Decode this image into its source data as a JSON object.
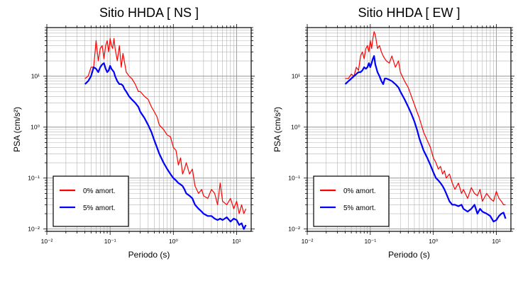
{
  "chart_data": [
    {
      "type": "line",
      "title": "Sitio HHDA [ NS ]",
      "xlabel": "Periodo (s)",
      "ylabel": "PSA (cm/s²)",
      "xscale": "log",
      "yscale": "log",
      "xlim": [
        0.01,
        17
      ],
      "ylim": [
        0.009,
        90
      ],
      "grid": true,
      "legend_position": "bottom-left",
      "x_tick_labels": [
        "10⁻²",
        "10⁻¹",
        "10⁰",
        "10¹"
      ],
      "y_tick_labels": [
        "10⁻²",
        "10⁻¹",
        "10⁰",
        "10¹"
      ],
      "series": [
        {
          "name": "0% amort.",
          "color": "#ff0000",
          "x": [
            0.04,
            0.045,
            0.05,
            0.055,
            0.06,
            0.065,
            0.07,
            0.075,
            0.08,
            0.085,
            0.09,
            0.095,
            0.1,
            0.105,
            0.11,
            0.115,
            0.12,
            0.13,
            0.14,
            0.15,
            0.16,
            0.17,
            0.18,
            0.2,
            0.22,
            0.25,
            0.28,
            0.3,
            0.35,
            0.4,
            0.45,
            0.5,
            0.55,
            0.6,
            0.7,
            0.8,
            0.9,
            1.0,
            1.1,
            1.2,
            1.3,
            1.4,
            1.5,
            1.6,
            1.8,
            2.0,
            2.2,
            2.5,
            2.8,
            3.0,
            3.5,
            4.0,
            4.5,
            5.0,
            5.5,
            6.0,
            7.0,
            8.0,
            9.0,
            10.0,
            11.0,
            12.0,
            13.0,
            14.0
          ],
          "y": [
            9,
            10,
            15,
            15,
            50,
            20,
            35,
            40,
            22,
            40,
            50,
            30,
            55,
            40,
            35,
            55,
            35,
            20,
            40,
            15,
            28,
            18,
            12,
            10,
            9,
            7,
            5,
            5,
            4,
            3.5,
            2.5,
            2.0,
            1.6,
            1.1,
            0.9,
            0.7,
            0.65,
            0.4,
            0.35,
            0.18,
            0.25,
            0.12,
            0.15,
            0.2,
            0.12,
            0.15,
            0.07,
            0.05,
            0.06,
            0.045,
            0.04,
            0.06,
            0.05,
            0.03,
            0.08,
            0.035,
            0.03,
            0.04,
            0.025,
            0.035,
            0.02,
            0.03,
            0.02,
            0.025
          ]
        },
        {
          "name": "5% amort.",
          "color": "#0000ff",
          "x": [
            0.04,
            0.045,
            0.05,
            0.055,
            0.06,
            0.065,
            0.07,
            0.075,
            0.08,
            0.085,
            0.09,
            0.095,
            0.1,
            0.105,
            0.11,
            0.115,
            0.12,
            0.13,
            0.14,
            0.15,
            0.16,
            0.17,
            0.18,
            0.2,
            0.22,
            0.25,
            0.28,
            0.3,
            0.35,
            0.4,
            0.45,
            0.5,
            0.55,
            0.6,
            0.7,
            0.8,
            0.9,
            1.0,
            1.1,
            1.2,
            1.3,
            1.4,
            1.5,
            1.6,
            1.8,
            2.0,
            2.2,
            2.5,
            2.8,
            3.0,
            3.5,
            4.0,
            4.5,
            5.0,
            5.5,
            6.0,
            7.0,
            8.0,
            9.0,
            10.0,
            11.0,
            12.0,
            13.0,
            14.0
          ],
          "y": [
            7,
            8,
            10,
            15,
            14,
            12,
            15,
            17,
            18,
            14,
            12,
            13,
            16,
            14,
            13,
            12,
            10,
            8,
            7,
            7,
            6.5,
            5.5,
            5,
            4,
            3.5,
            3,
            2.5,
            2.0,
            1.5,
            1.1,
            0.8,
            0.55,
            0.4,
            0.3,
            0.2,
            0.15,
            0.12,
            0.1,
            0.09,
            0.08,
            0.075,
            0.07,
            0.06,
            0.05,
            0.045,
            0.04,
            0.03,
            0.025,
            0.022,
            0.02,
            0.018,
            0.018,
            0.016,
            0.015,
            0.016,
            0.015,
            0.017,
            0.014,
            0.016,
            0.015,
            0.012,
            0.013,
            0.01,
            0.012
          ]
        }
      ]
    },
    {
      "type": "line",
      "title": "Sitio HHDA [ EW ]",
      "xlabel": "Periodo (s)",
      "ylabel": "PSA (cm/s²)",
      "xscale": "log",
      "yscale": "log",
      "xlim": [
        0.01,
        17
      ],
      "ylim": [
        0.009,
        90
      ],
      "grid": true,
      "legend_position": "bottom-left",
      "x_tick_labels": [
        "10⁻²",
        "10⁻¹",
        "10⁰",
        "10¹"
      ],
      "y_tick_labels": [
        "10⁻²",
        "10⁻¹",
        "10⁰",
        "10¹"
      ],
      "series": [
        {
          "name": "0% amort.",
          "color": "#ff0000",
          "x": [
            0.04,
            0.045,
            0.05,
            0.055,
            0.06,
            0.065,
            0.07,
            0.075,
            0.08,
            0.085,
            0.09,
            0.095,
            0.1,
            0.105,
            0.11,
            0.115,
            0.12,
            0.13,
            0.14,
            0.15,
            0.16,
            0.17,
            0.18,
            0.2,
            0.22,
            0.25,
            0.28,
            0.3,
            0.35,
            0.4,
            0.45,
            0.5,
            0.55,
            0.6,
            0.7,
            0.8,
            0.9,
            1.0,
            1.1,
            1.2,
            1.3,
            1.4,
            1.5,
            1.6,
            1.8,
            2.0,
            2.2,
            2.5,
            2.8,
            3.0,
            3.5,
            4.0,
            4.5,
            5.0,
            5.5,
            6.0,
            7.0,
            8.0,
            9.0,
            10.0,
            11.0,
            12.0,
            13.0,
            14.0
          ],
          "y": [
            9,
            9,
            11,
            10,
            15,
            13,
            25,
            30,
            22,
            35,
            40,
            30,
            50,
            35,
            55,
            75,
            65,
            35,
            40,
            30,
            25,
            22,
            20,
            18,
            25,
            15,
            20,
            12,
            8,
            6,
            4,
            2.8,
            2.0,
            1.5,
            0.8,
            0.55,
            0.4,
            0.25,
            0.2,
            0.15,
            0.17,
            0.12,
            0.14,
            0.1,
            0.12,
            0.08,
            0.06,
            0.08,
            0.05,
            0.06,
            0.04,
            0.065,
            0.05,
            0.045,
            0.06,
            0.035,
            0.05,
            0.04,
            0.035,
            0.055,
            0.04,
            0.035,
            0.03,
            0.03
          ]
        },
        {
          "name": "5% amort.",
          "color": "#0000ff",
          "x": [
            0.04,
            0.045,
            0.05,
            0.055,
            0.06,
            0.065,
            0.07,
            0.075,
            0.08,
            0.085,
            0.09,
            0.095,
            0.1,
            0.105,
            0.11,
            0.115,
            0.12,
            0.13,
            0.14,
            0.15,
            0.16,
            0.17,
            0.18,
            0.2,
            0.22,
            0.25,
            0.28,
            0.3,
            0.35,
            0.4,
            0.45,
            0.5,
            0.55,
            0.6,
            0.7,
            0.8,
            0.9,
            1.0,
            1.1,
            1.2,
            1.3,
            1.4,
            1.5,
            1.6,
            1.8,
            2.0,
            2.2,
            2.5,
            2.8,
            3.0,
            3.5,
            4.0,
            4.5,
            5.0,
            5.5,
            6.0,
            7.0,
            8.0,
            9.0,
            10.0,
            11.0,
            12.0,
            13.0,
            14.0
          ],
          "y": [
            7,
            8,
            9,
            10,
            11,
            12,
            12,
            13,
            15,
            14,
            15,
            18,
            15,
            18,
            22,
            25,
            17,
            12,
            10,
            8,
            7,
            9,
            9,
            8.5,
            8,
            7,
            6,
            5,
            3.5,
            2.5,
            1.8,
            1.3,
            0.9,
            0.6,
            0.35,
            0.25,
            0.18,
            0.13,
            0.1,
            0.09,
            0.08,
            0.07,
            0.06,
            0.05,
            0.035,
            0.03,
            0.03,
            0.028,
            0.03,
            0.025,
            0.022,
            0.025,
            0.03,
            0.02,
            0.025,
            0.022,
            0.02,
            0.018,
            0.014,
            0.015,
            0.018,
            0.02,
            0.021,
            0.016
          ]
        }
      ]
    }
  ]
}
